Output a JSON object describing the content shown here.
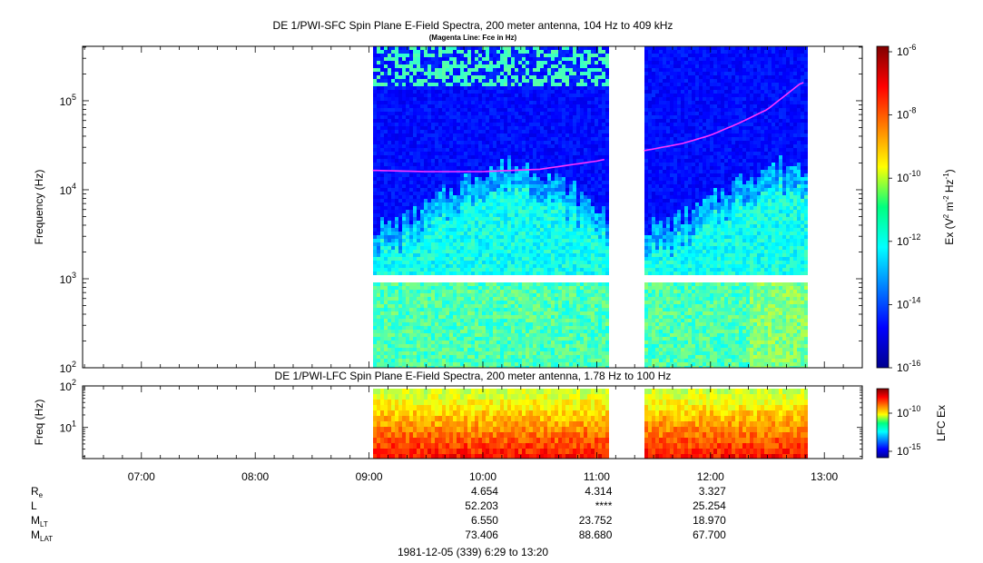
{
  "top_panel": {
    "title": "DE 1/PWI-SFC  Spin Plane E-Field Spectra, 200 meter antenna, 104 Hz to 409 kHz",
    "subtitle": "(Magenta Line: Fce in Hz)",
    "ylabel": "Frequency (Hz)",
    "colorbar_label_base": "Ex (V",
    "colorbar_ticks": [
      {
        "mant": "10",
        "exp": "-6"
      },
      {
        "mant": "10",
        "exp": "-8"
      },
      {
        "mant": "10",
        "exp": "-10"
      },
      {
        "mant": "10",
        "exp": "-12"
      },
      {
        "mant": "10",
        "exp": "-14"
      },
      {
        "mant": "10",
        "exp": "-16"
      }
    ]
  },
  "bottom_panel": {
    "title": "DE 1/PWI-LFC  Spin Plane E-Field Spectra, 200 meter antenna, 1.78 Hz to 100 Hz",
    "ylabel": "Freq (Hz)",
    "colorbar_label": "LFC Ex",
    "colorbar_ticks": [
      {
        "mant": "10",
        "exp": "-10"
      },
      {
        "mant": "10",
        "exp": "-15"
      }
    ]
  },
  "ephemeris": {
    "labels": [
      "R",
      "L",
      "M",
      "M"
    ],
    "label_subs": [
      "e",
      "",
      "LT",
      "LAT"
    ],
    "columns": [
      {
        "time": "10:00",
        "values": [
          "4.654",
          "52.203",
          "6.550",
          "73.406"
        ]
      },
      {
        "time": "11:00",
        "values": [
          "4.314",
          "****",
          "23.752",
          "88.680"
        ]
      },
      {
        "time": "12:00",
        "values": [
          "3.327",
          "25.254",
          "18.970",
          "67.700"
        ]
      }
    ],
    "footer": "1981-12-05 (339) 6:29 to 13:20"
  },
  "chart_data": [
    {
      "type": "heatmap",
      "title": "DE 1/PWI-SFC  Spin Plane E-Field Spectra, 200 meter antenna, 104 Hz to 409 kHz",
      "subtitle": "(Magenta Line: Fce in Hz)",
      "ylabel": "Frequency (Hz)",
      "yscale": "log",
      "ylim": [
        100,
        409000
      ],
      "xlim": [
        "06:29",
        "13:20"
      ],
      "x_tick_labels": [
        "07:00",
        "08:00",
        "09:00",
        "10:00",
        "11:00",
        "12:00",
        "13:00"
      ],
      "y_tick_labels": [
        "10^2",
        "10^3",
        "10^4",
        "10^5"
      ],
      "colorbar": {
        "label": "Ex (V^2 m^-2 Hz^-1)",
        "scale": "log",
        "range": [
          1e-16,
          1e-06
        ]
      },
      "data_intervals": [
        [
          "09:02",
          "11:05"
        ],
        [
          "11:25",
          "12:50"
        ]
      ],
      "fce_line": {
        "color": "#ff33ff",
        "time": [
          "09:02",
          "09:30",
          "10:00",
          "10:30",
          "11:00",
          "11:25",
          "11:45",
          "12:00",
          "12:15",
          "12:30",
          "12:48"
        ],
        "fce_hz": [
          16500,
          16000,
          16000,
          17000,
          21000,
          27500,
          33000,
          41000,
          56000,
          80000,
          160000
        ]
      }
    },
    {
      "type": "heatmap",
      "title": "DE 1/PWI-LFC  Spin Plane E-Field Spectra, 200 meter antenna, 1.78 Hz to 100 Hz",
      "ylabel": "Freq (Hz)",
      "yscale": "log",
      "ylim": [
        1.78,
        100
      ],
      "xlim": [
        "06:29",
        "13:20"
      ],
      "y_tick_labels": [
        "10^1",
        "10^2"
      ],
      "colorbar": {
        "label": "LFC Ex",
        "scale": "log",
        "range": [
          1e-17,
          1e-08
        ]
      },
      "data_intervals": [
        [
          "09:02",
          "11:05"
        ],
        [
          "11:25",
          "12:50"
        ]
      ]
    }
  ]
}
